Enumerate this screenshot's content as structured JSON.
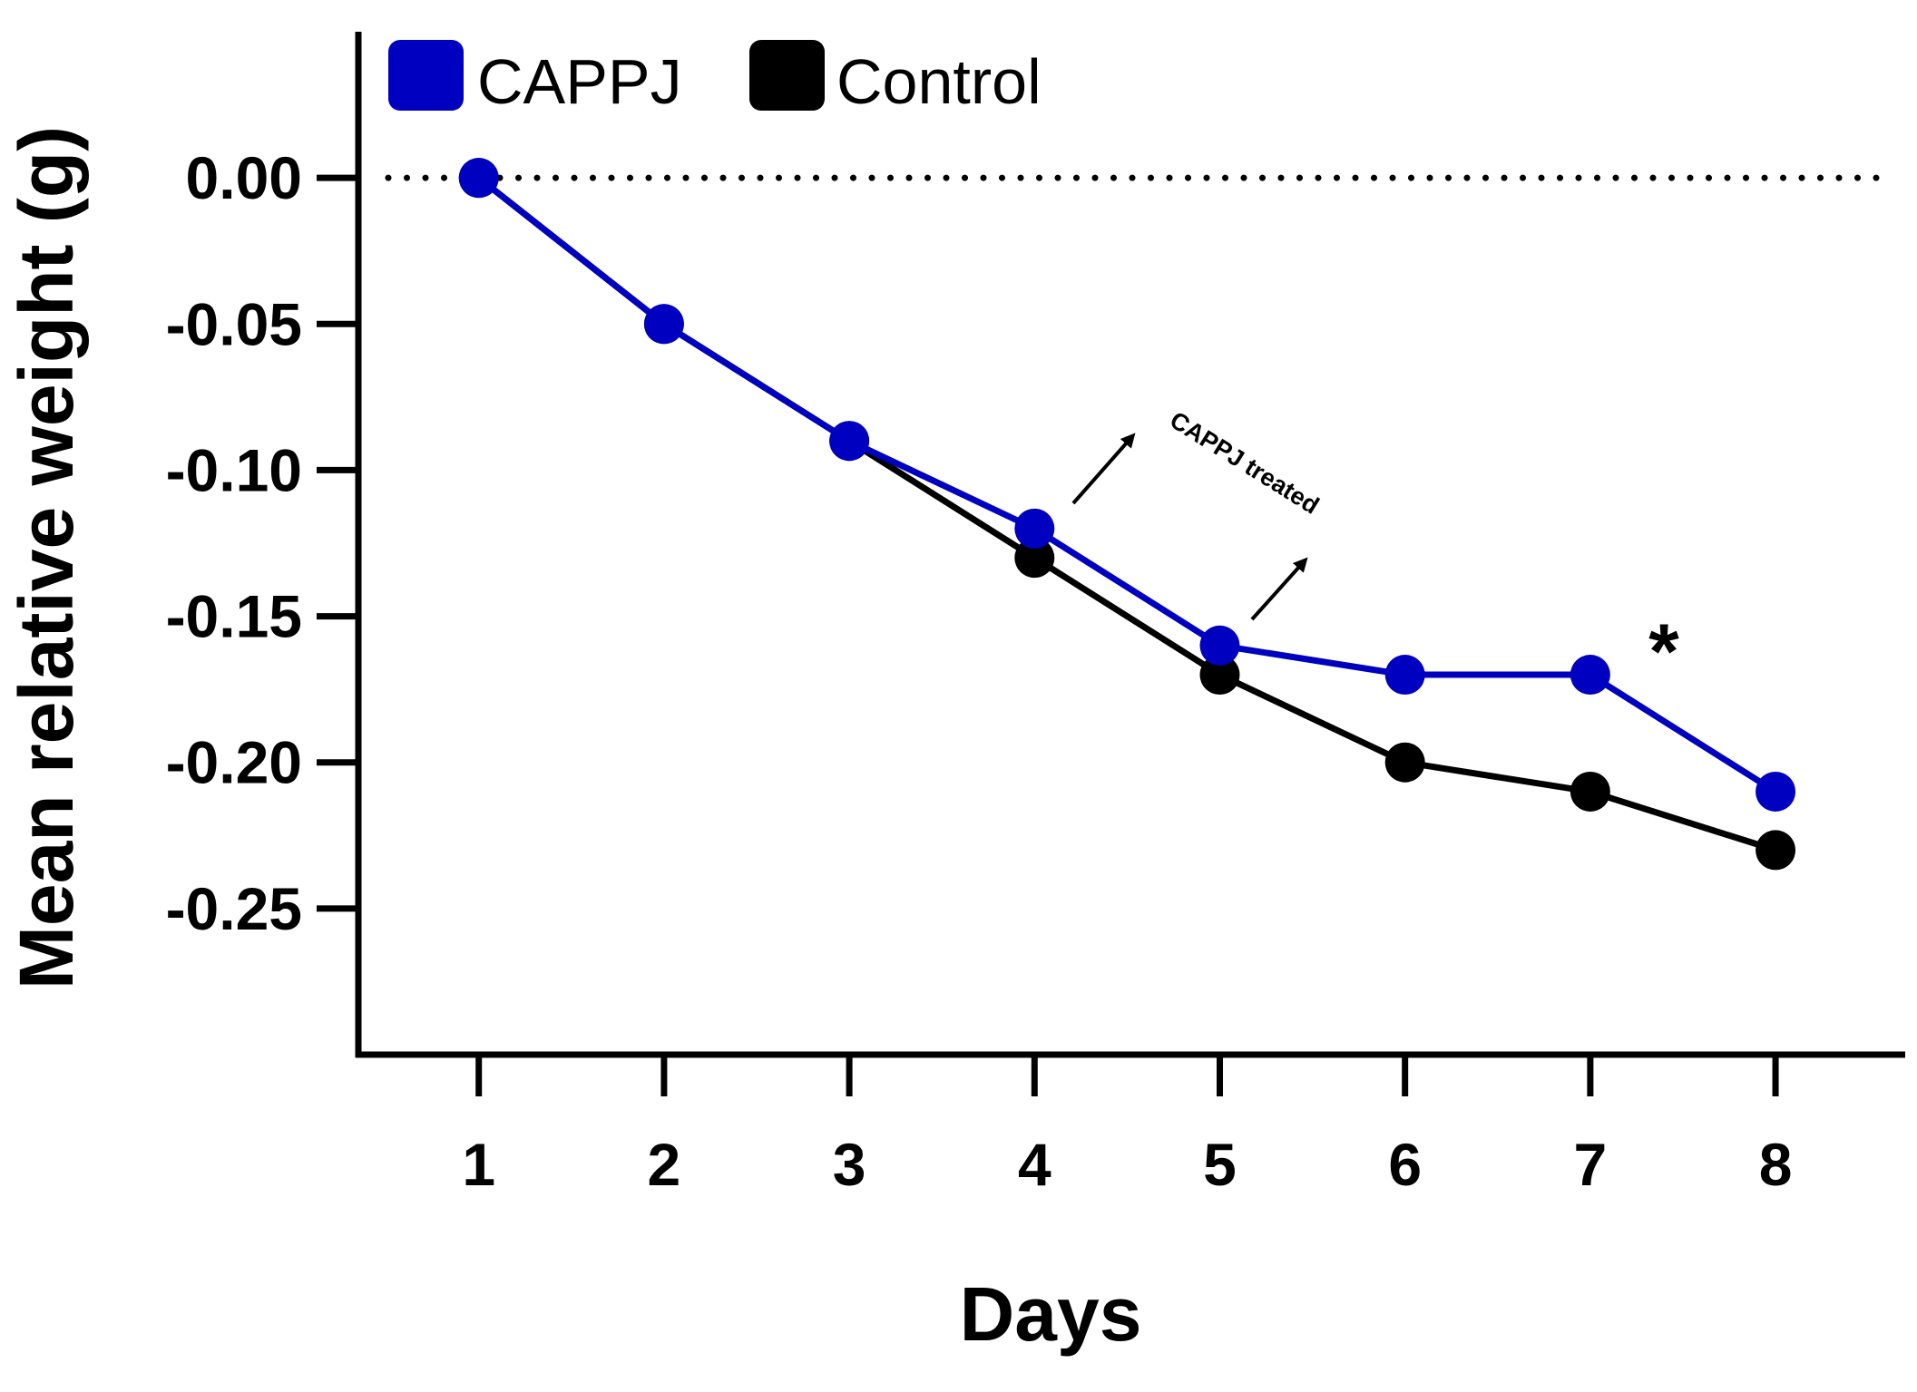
{
  "chart_data": {
    "type": "line",
    "title": "",
    "xlabel": "Days",
    "ylabel": "Mean relative weight (g)",
    "x": [
      1,
      2,
      3,
      4,
      5,
      6,
      7,
      8
    ],
    "xlim": [
      0.35,
      8.7
    ],
    "ylim": [
      -0.3,
      0.05
    ],
    "yticks": [
      0.0,
      -0.05,
      -0.1,
      -0.15,
      -0.2,
      -0.25
    ],
    "ytick_labels": [
      "0.00",
      "-0.05",
      "-0.10",
      "-0.15",
      "-0.20",
      "-0.25"
    ],
    "xtick_labels": [
      "1",
      "2",
      "3",
      "4",
      "5",
      "6",
      "7",
      "8"
    ],
    "reference_line": {
      "y": 0.0,
      "style": "dotted"
    },
    "legend_position": "top-left",
    "series": [
      {
        "name": "Control",
        "color": "#000000",
        "values": [
          0.0,
          -0.05,
          -0.09,
          -0.13,
          -0.17,
          -0.2,
          -0.21,
          -0.23
        ]
      },
      {
        "name": "CAPPJ",
        "color": "#0000c0",
        "values": [
          0.0,
          -0.05,
          -0.09,
          -0.12,
          -0.16,
          -0.17,
          -0.17,
          -0.21
        ]
      }
    ],
    "legend": [
      {
        "label": "CAPPJ",
        "color": "#0000c0"
      },
      {
        "label": "Control",
        "color": "#000000"
      }
    ],
    "annotations": {
      "treatment_label": "CAPPJ treated",
      "significance_marker": "*",
      "significance_day": 7
    }
  }
}
